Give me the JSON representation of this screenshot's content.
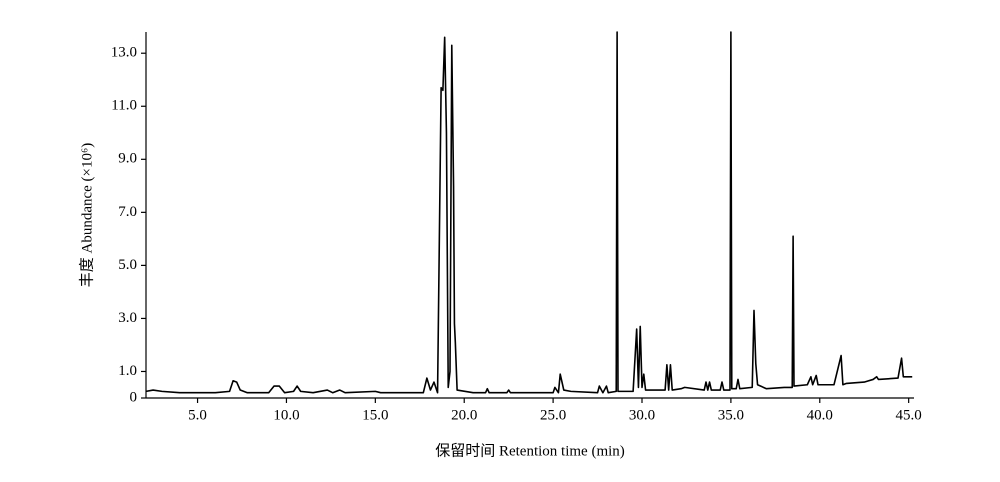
{
  "chart_data": {
    "type": "line",
    "x_label": "保留时间 Retention time (min)",
    "y_label": "丰度 Abundance (×10⁶)",
    "xlim": [
      2.1,
      45.3
    ],
    "ylim": [
      0,
      13.8
    ],
    "xticks": [
      {
        "value": 5,
        "label": "5.0"
      },
      {
        "value": 10,
        "label": "10.0"
      },
      {
        "value": 15,
        "label": "15.0"
      },
      {
        "value": 20,
        "label": "20.0"
      },
      {
        "value": 25,
        "label": "25.0"
      },
      {
        "value": 30,
        "label": "30.0"
      },
      {
        "value": 35,
        "label": "35.0"
      },
      {
        "value": 40,
        "label": "40.0"
      },
      {
        "value": 45,
        "label": "45.0"
      }
    ],
    "yticks": [
      0,
      {
        "value": 1,
        "label": "1.0"
      },
      {
        "value": 3,
        "label": "3.0"
      },
      {
        "value": 5,
        "label": "5.0"
      },
      {
        "value": 7,
        "label": "7.0"
      },
      {
        "value": 9,
        "label": "9.0"
      },
      {
        "value": 11,
        "label": "11.0"
      },
      {
        "value": 13,
        "label": "13.0"
      }
    ],
    "series": [
      {
        "color": "#000000",
        "x": [
          2.1,
          2.5,
          3.0,
          4.0,
          5.0,
          6.0,
          6.8,
          7.0,
          7.2,
          7.4,
          7.8,
          9.0,
          9.3,
          9.6,
          9.9,
          10.4,
          10.6,
          10.8,
          11.5,
          12.3,
          12.6,
          13.0,
          13.3,
          15.0,
          15.3,
          17.7,
          17.9,
          18.1,
          18.3,
          18.5,
          18.7,
          18.8,
          18.9,
          19.0,
          19.1,
          19.2,
          19.3,
          19.4,
          19.45,
          19.5,
          19.6,
          20.5,
          21.2,
          21.3,
          21.4,
          22.4,
          22.5,
          22.6,
          25.0,
          25.1,
          25.3,
          25.4,
          25.6,
          26.0,
          27.5,
          27.6,
          27.8,
          28.0,
          28.1,
          28.55,
          28.6,
          28.65,
          29.5,
          29.7,
          29.8,
          29.9,
          30.0,
          30.1,
          30.2,
          31.3,
          31.4,
          31.5,
          31.6,
          31.7,
          32.2,
          32.4,
          33.5,
          33.6,
          33.7,
          33.8,
          33.9,
          34.4,
          34.5,
          34.6,
          34.95,
          35.0,
          35.05,
          35.3,
          35.4,
          35.5,
          36.2,
          36.3,
          36.4,
          36.5,
          37.0,
          38.0,
          38.45,
          38.5,
          38.55,
          39.3,
          39.5,
          39.6,
          39.8,
          39.9,
          40.8,
          41.2,
          41.3,
          41.5,
          42.5,
          43.0,
          43.2,
          43.3,
          44.4,
          44.6,
          44.7,
          45.2
        ],
        "values": [
          0.25,
          0.3,
          0.25,
          0.2,
          0.2,
          0.2,
          0.25,
          0.65,
          0.6,
          0.3,
          0.2,
          0.2,
          0.45,
          0.45,
          0.2,
          0.25,
          0.45,
          0.25,
          0.2,
          0.3,
          0.2,
          0.3,
          0.2,
          0.25,
          0.2,
          0.2,
          0.75,
          0.3,
          0.6,
          0.2,
          11.7,
          11.6,
          13.6,
          10.0,
          0.4,
          1.0,
          13.3,
          8.0,
          2.8,
          2.1,
          0.3,
          0.2,
          0.2,
          0.35,
          0.2,
          0.2,
          0.3,
          0.2,
          0.2,
          0.4,
          0.2,
          0.9,
          0.3,
          0.25,
          0.2,
          0.45,
          0.2,
          0.45,
          0.2,
          0.25,
          13.8,
          0.25,
          0.25,
          2.6,
          0.4,
          2.7,
          0.4,
          0.9,
          0.3,
          0.3,
          1.25,
          0.3,
          1.25,
          0.3,
          0.35,
          0.4,
          0.3,
          0.6,
          0.3,
          0.6,
          0.3,
          0.3,
          0.6,
          0.3,
          0.3,
          13.8,
          0.35,
          0.35,
          0.7,
          0.35,
          0.4,
          3.3,
          1.3,
          0.5,
          0.35,
          0.4,
          0.4,
          6.1,
          0.45,
          0.5,
          0.8,
          0.5,
          0.85,
          0.5,
          0.5,
          1.6,
          0.5,
          0.55,
          0.6,
          0.7,
          0.8,
          0.7,
          0.75,
          1.5,
          0.8,
          0.8
        ]
      }
    ]
  }
}
